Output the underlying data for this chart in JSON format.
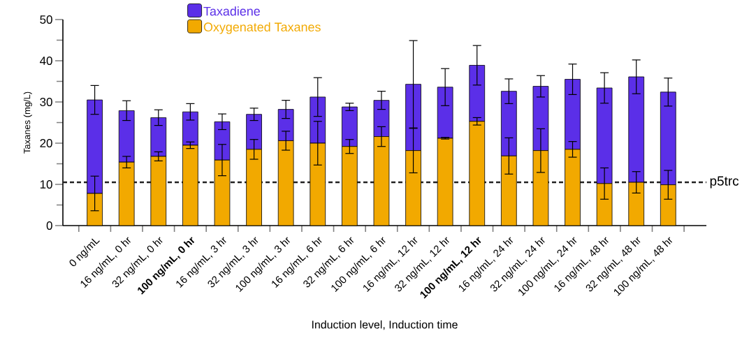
{
  "chart_data": {
    "type": "bar",
    "stacked": true,
    "xlabel": "Induction level, Induction time",
    "ylabel": "Taxanes (mg/L)",
    "categories": [
      "0 ng/mL",
      "16 ng/mL, 0 hr",
      "32 ng/mL, 0 hr",
      "**100 ng/mL, 0 hr**",
      "16 ng/mL, 3 hr",
      "32 ng/mL, 3 hr",
      "100 ng/mL, 3 hr",
      "16 ng/mL, 6 hr",
      "32 ng/mL, 6 hr",
      "100 ng/mL, 6 hr",
      "16 ng/mL, 12 hr",
      "32 ng/mL, 12 hr",
      "**100 ng/mL, 12 hr**",
      "16 ng/mL, 24 hr",
      "32 ng/mL, 24 hr",
      "100 ng/mL, 24 hr",
      "16 ng/mL, 48 hr",
      "32 ng/mL, 48 hr",
      "100 ng/mL, 48 hr"
    ],
    "series": [
      {
        "name": "Oxygenated Taxanes",
        "color": "#f2a900",
        "values": [
          7.8,
          15.4,
          16.8,
          19.5,
          15.9,
          18.5,
          20.6,
          20.0,
          19.2,
          21.6,
          18.2,
          21.2,
          25.3,
          16.9,
          18.2,
          18.5,
          10.2,
          10.5,
          9.9
        ],
        "errors": [
          4.2,
          1.4,
          1.1,
          0.8,
          3.8,
          2.4,
          2.3,
          5.3,
          1.7,
          2.4,
          5.4,
          0.2,
          0.9,
          4.4,
          5.3,
          1.9,
          3.8,
          2.6,
          3.5
        ]
      },
      {
        "name": "Taxadiene",
        "color": "#5b2fe8",
        "values": [
          22.7,
          12.5,
          9.4,
          8.1,
          9.3,
          8.5,
          7.6,
          11.2,
          9.6,
          8.8,
          16.1,
          12.4,
          13.6,
          15.7,
          15.6,
          17.0,
          23.2,
          25.6,
          22.5
        ],
        "errors": [
          3.5,
          2.4,
          1.9,
          2.0,
          1.9,
          1.5,
          2.2,
          4.7,
          0.9,
          2.2,
          10.6,
          4.5,
          4.8,
          3.0,
          2.6,
          3.7,
          3.7,
          4.1,
          3.4
        ]
      }
    ],
    "ylim": [
      0,
      50
    ],
    "yticks": [
      0,
      {
        "value": 5,
        "label": null
      },
      10,
      {
        "value": 15,
        "label": null
      },
      20,
      {
        "value": 25,
        "label": null
      },
      30,
      {
        "value": 35,
        "label": null
      },
      40,
      {
        "value": 45,
        "label": null
      },
      50
    ],
    "ref_lines": [
      {
        "axis": "y",
        "value": 10.5,
        "label": "p5trc",
        "color": "#222222",
        "line_style": "dashed"
      }
    ],
    "legend": "top",
    "grid": false
  }
}
